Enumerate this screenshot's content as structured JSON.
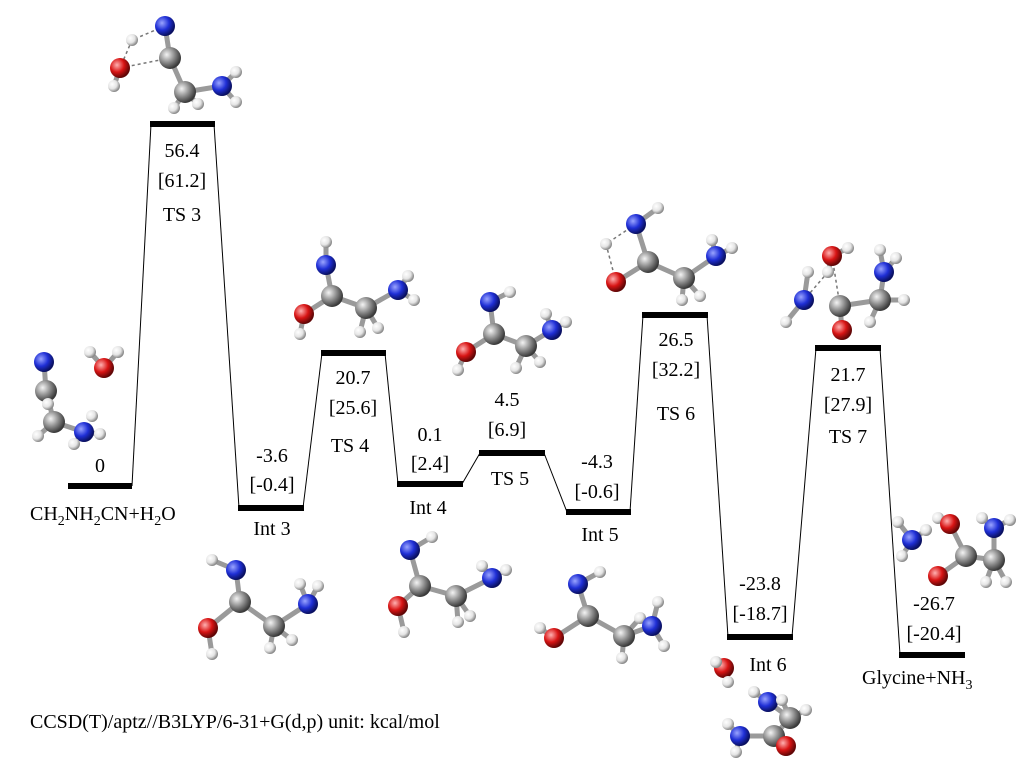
{
  "footer": "CCSD(T)/aptz//B3LYP/6-31+G(d,p)  unit: kcal/mol",
  "levels": [
    {
      "id": "reactant",
      "energy": "0",
      "energy_alt": "",
      "name": "CH2NH2CN+H2O"
    },
    {
      "id": "ts3",
      "energy": "56.4",
      "energy_alt": "[61.2]",
      "name": "TS 3"
    },
    {
      "id": "int3",
      "energy": "-3.6",
      "energy_alt": "[-0.4]",
      "name": "Int 3"
    },
    {
      "id": "ts4",
      "energy": "20.7",
      "energy_alt": "[25.6]",
      "name": "TS 4"
    },
    {
      "id": "int4",
      "energy": "0.1",
      "energy_alt": "[2.4]",
      "name": "Int 4"
    },
    {
      "id": "ts5",
      "energy": "4.5",
      "energy_alt": "[6.9]",
      "name": "TS 5"
    },
    {
      "id": "int5",
      "energy": "-4.3",
      "energy_alt": "[-0.6]",
      "name": "Int 5"
    },
    {
      "id": "ts6",
      "energy": "26.5",
      "energy_alt": "[32.2]",
      "name": "TS 6"
    },
    {
      "id": "int6",
      "energy": "-23.8",
      "energy_alt": "[-18.7]",
      "name": "Int 6"
    },
    {
      "id": "ts7",
      "energy": "21.7",
      "energy_alt": "[27.9]",
      "name": "TS 7"
    },
    {
      "id": "product",
      "energy": "-26.7",
      "energy_alt": "[-20.4]",
      "name": "Glycine+NH3"
    }
  ],
  "atom_colors": {
    "C": "#8a8a8a",
    "N": "#1f2fd6",
    "O": "#d81414",
    "H": "#f2f2f2"
  }
}
